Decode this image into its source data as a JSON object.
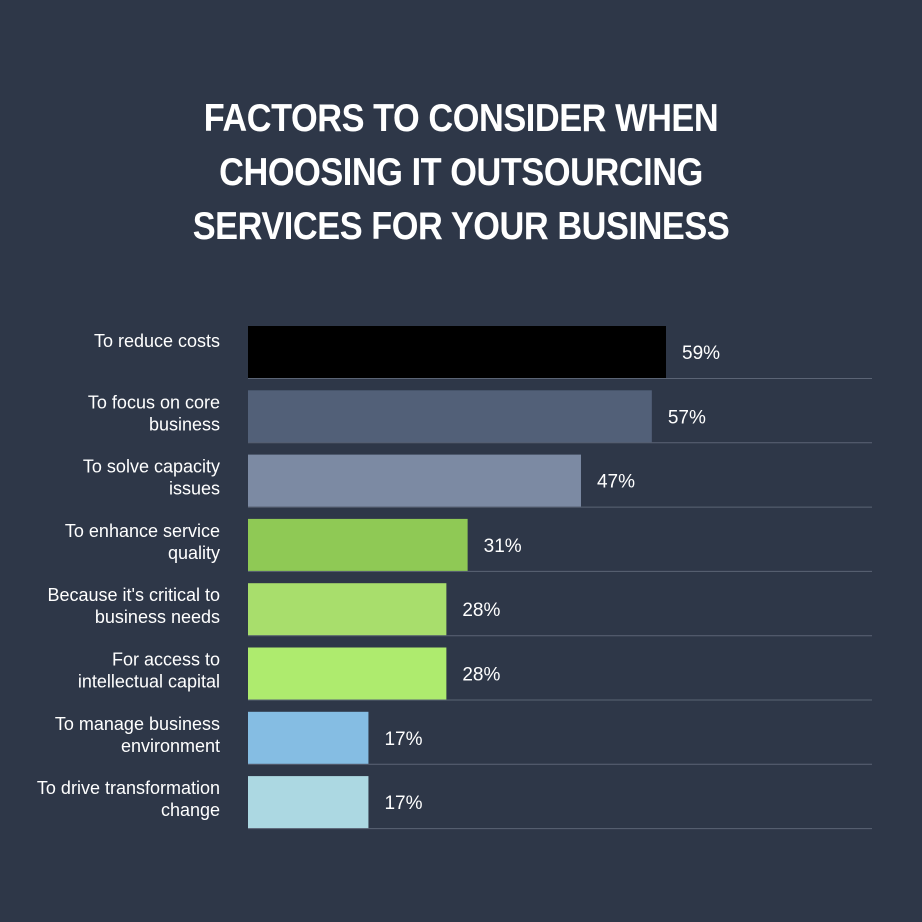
{
  "chart_data": {
    "type": "bar",
    "orientation": "horizontal",
    "title_lines": [
      "FACTORS TO CONSIDER WHEN",
      "CHOOSING IT OUTSOURCING",
      "SERVICES FOR YOUR BUSINESS"
    ],
    "categories": [
      [
        "To reduce costs"
      ],
      [
        "To focus on core",
        "business"
      ],
      [
        "To solve capacity",
        "issues"
      ],
      [
        "To enhance service",
        "quality"
      ],
      [
        "Because it's critical to",
        "business needs"
      ],
      [
        "For access to",
        "intellectual capital"
      ],
      [
        "To manage business",
        "environment"
      ],
      [
        "To drive transformation",
        "change"
      ]
    ],
    "values": [
      59,
      57,
      47,
      31,
      28,
      28,
      17,
      17
    ],
    "value_labels": [
      "59%",
      "57%",
      "47%",
      "31%",
      "28%",
      "28%",
      "17%",
      "17%"
    ],
    "colors": [
      "#000000",
      "#526078",
      "#7c8aa3",
      "#8fc955",
      "#a8de6c",
      "#aeeb6e",
      "#85bde3",
      "#acd8e2"
    ],
    "xlim": [
      0,
      100
    ],
    "background": "#2e3748",
    "text_color": "#ffffff",
    "gridline_color": "#5b6475"
  }
}
